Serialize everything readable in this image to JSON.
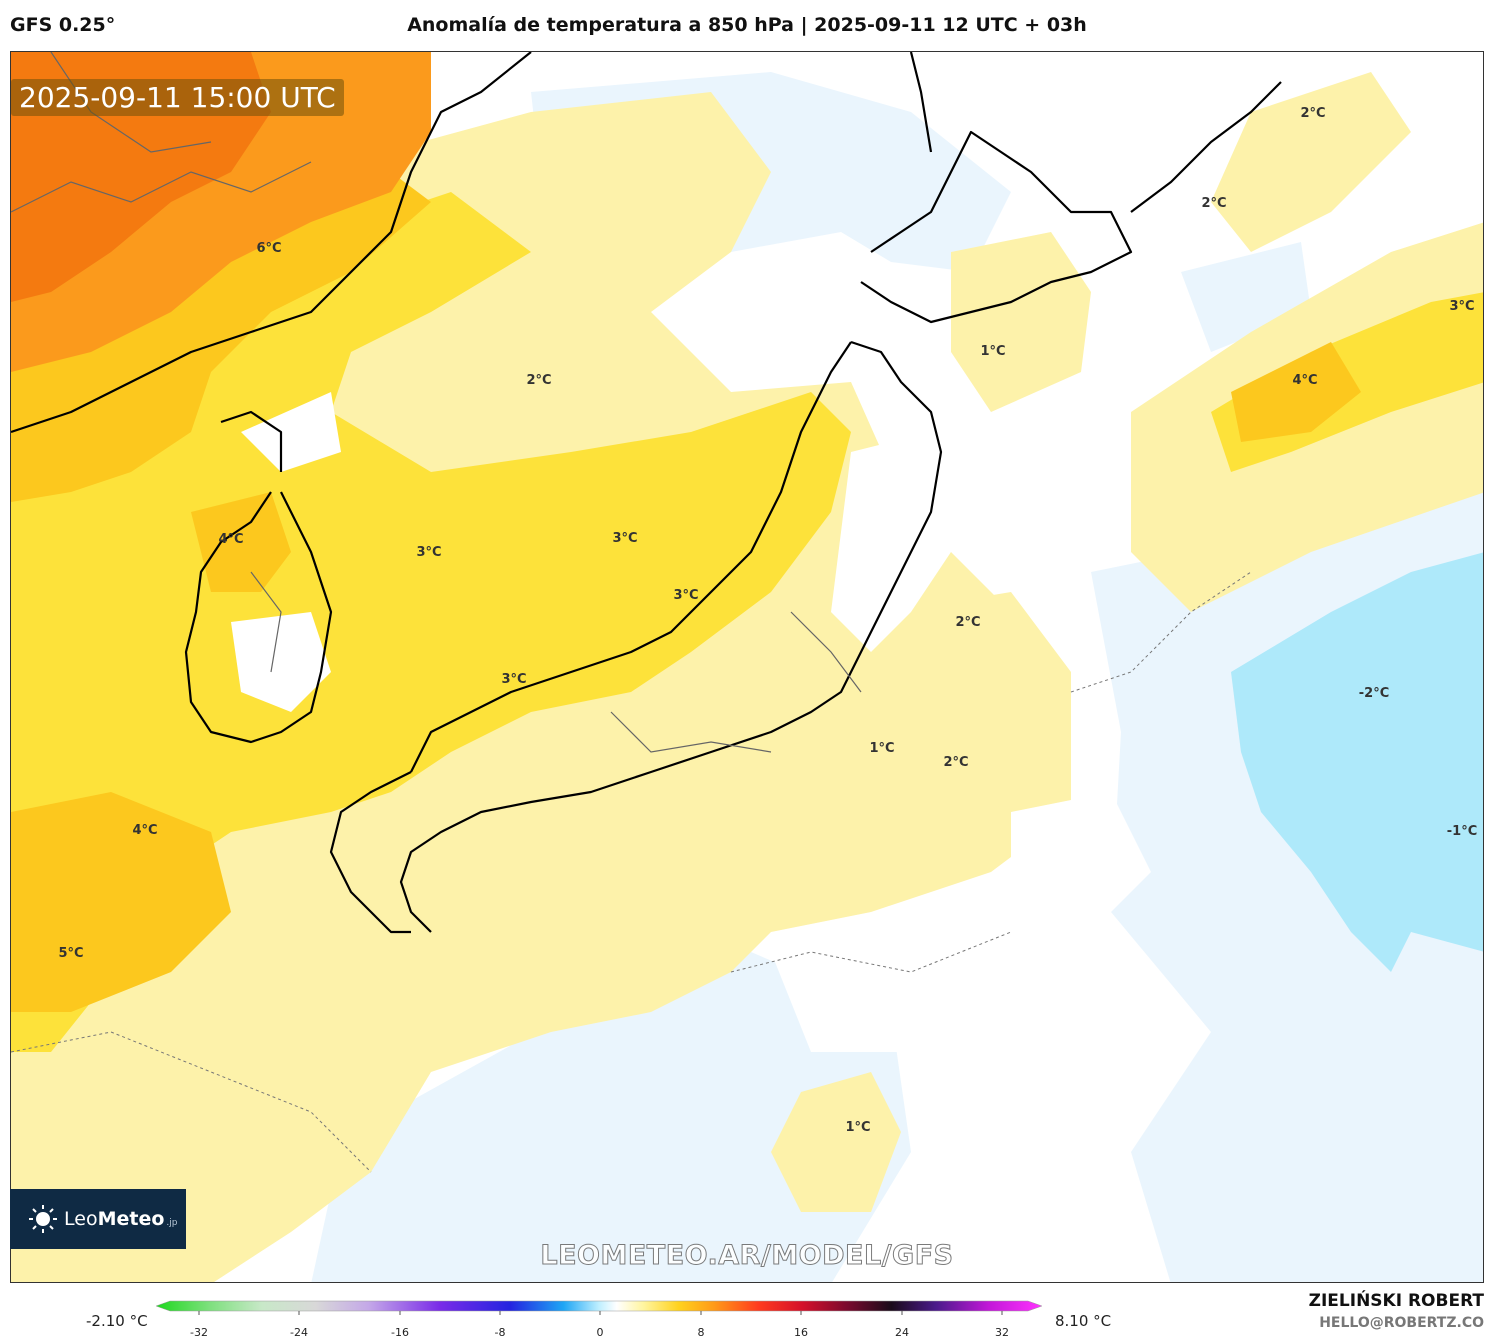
{
  "header": {
    "model": "GFS 0.25°",
    "title": "Anomalía de temperatura a 850 hPa | 2025-09-11 12 UTC + 03h"
  },
  "valid_time": "2025-09-11 15:00 UTC",
  "logo": {
    "brand_light": "Leo",
    "brand_bold": "Meteo",
    "tld": ".jp"
  },
  "watermark": "LEOMETEO.AR/MODEL/GFS",
  "colorbar": {
    "min_label": "-2.10 °C",
    "max_label": "8.10 °C",
    "ticks": [
      "-32",
      "-24",
      "-16",
      "-8",
      "0",
      "8",
      "16",
      "24",
      "32"
    ]
  },
  "author": "ZIELIŃSKI ROBERT",
  "email": "HELLO@ROBERTZ.CO",
  "map_labels": [
    "6°C",
    "2°C",
    "1°C",
    "2°C",
    "2°C",
    "3°C",
    "4°C",
    "4°C",
    "3°C",
    "3°C",
    "3°C",
    "2°C",
    "-2°C",
    "3°C",
    "1°C",
    "2°C",
    "4°C",
    "-1°C",
    "5°C",
    "1°C"
  ],
  "colors": {
    "orange_dark": "#f47a10",
    "orange": "#fb9a1c",
    "amber": "#fcc81e",
    "yellow": "#fde23a",
    "yellow_light": "#fdf2aa",
    "blue_pale": "#eaf5fd",
    "blue_light": "#aee9fa"
  }
}
